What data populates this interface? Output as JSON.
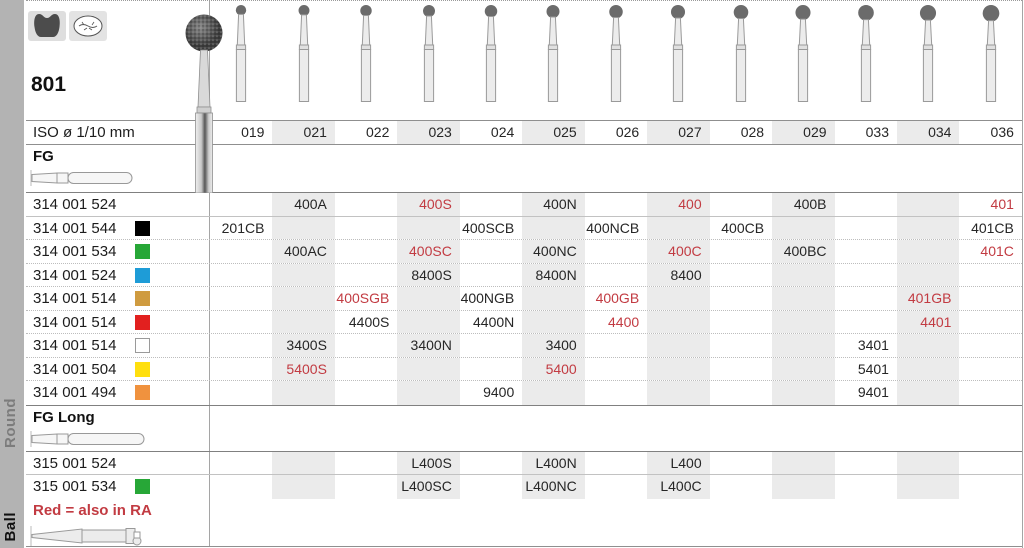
{
  "header": {
    "product_number": "801",
    "iso_label": "ISO ø 1/10 mm",
    "icons": [
      "molar-icon",
      "tooth-occlusal-icon"
    ]
  },
  "sidebar": {
    "shape_label": "Round",
    "group_label": "Ball"
  },
  "note": {
    "text": "Red = also in RA"
  },
  "colors": {
    "red_text": "#c23b42",
    "stripe": "#ebebeb",
    "squares": {
      "black": "#000000",
      "green": "#27a737",
      "blue": "#1e9cd7",
      "tan": "#cf9b40",
      "red": "#e2201f",
      "white": "#ffffff",
      "yellow": "#ffdf0e",
      "orange": "#f0923e"
    }
  },
  "table": {
    "columns": [
      "019",
      "021",
      "022",
      "023",
      "024",
      "025",
      "026",
      "027",
      "028",
      "029",
      "033",
      "034",
      "036"
    ],
    "shaded_columns": [
      "021",
      "023",
      "025",
      "027",
      "029",
      "034"
    ],
    "sections": [
      {
        "label": "FG",
        "rows": [
          {
            "iso": "314 001 524",
            "square": null,
            "divider": "solid",
            "cells": [
              {
                "col": "021",
                "code": "400A"
              },
              {
                "col": "023",
                "code": "400S",
                "red": true
              },
              {
                "col": "025",
                "code": "400N"
              },
              {
                "col": "027",
                "code": "400",
                "red": true
              },
              {
                "col": "029",
                "code": "400B"
              },
              {
                "col": "036",
                "code": "401",
                "red": true
              }
            ]
          },
          {
            "iso": "314 001 544",
            "square": "black",
            "divider": "dotted",
            "cells": [
              {
                "col": "019",
                "code": "201CB"
              },
              {
                "col": "024",
                "code": "400SCB"
              },
              {
                "col": "026",
                "code": "400NCB"
              },
              {
                "col": "028",
                "code": "400CB"
              },
              {
                "col": "036",
                "code": "401CB"
              }
            ]
          },
          {
            "iso": "314 001 534",
            "square": "green",
            "divider": "dotted",
            "cells": [
              {
                "col": "021",
                "code": "400AC"
              },
              {
                "col": "023",
                "code": "400SC",
                "red": true
              },
              {
                "col": "025",
                "code": "400NC"
              },
              {
                "col": "027",
                "code": "400C",
                "red": true
              },
              {
                "col": "029",
                "code": "400BC"
              },
              {
                "col": "036",
                "code": "401C",
                "red": true
              }
            ]
          },
          {
            "iso": "314 001 524",
            "square": "blue",
            "divider": "dotted",
            "cells": [
              {
                "col": "023",
                "code": "8400S"
              },
              {
                "col": "025",
                "code": "8400N"
              },
              {
                "col": "027",
                "code": "8400"
              }
            ]
          },
          {
            "iso": "314 001 514",
            "square": "tan",
            "divider": "dotted",
            "cells": [
              {
                "col": "022",
                "code": "400SGB",
                "red": true
              },
              {
                "col": "024",
                "code": "400NGB"
              },
              {
                "col": "026",
                "code": "400GB",
                "red": true
              },
              {
                "col": "034",
                "code": "401GB",
                "red": true
              }
            ]
          },
          {
            "iso": "314 001 514",
            "square": "red",
            "divider": "dotted",
            "cells": [
              {
                "col": "022",
                "code": "4400S"
              },
              {
                "col": "024",
                "code": "4400N"
              },
              {
                "col": "026",
                "code": "4400",
                "red": true
              },
              {
                "col": "034",
                "code": "4401",
                "red": true
              }
            ]
          },
          {
            "iso": "314 001 514",
            "square": "white",
            "divider": "dotted",
            "cells": [
              {
                "col": "021",
                "code": "3400S"
              },
              {
                "col": "023",
                "code": "3400N"
              },
              {
                "col": "025",
                "code": "3400"
              },
              {
                "col": "033",
                "code": "3401"
              }
            ]
          },
          {
            "iso": "314 001 504",
            "square": "yellow",
            "divider": "dotted",
            "cells": [
              {
                "col": "021",
                "code": "5400S",
                "red": true
              },
              {
                "col": "025",
                "code": "5400",
                "red": true
              },
              {
                "col": "033",
                "code": "5401"
              }
            ]
          },
          {
            "iso": "314 001 494",
            "square": "orange",
            "divider": "none",
            "cells": [
              {
                "col": "024",
                "code": "9400"
              },
              {
                "col": "033",
                "code": "9401"
              }
            ]
          }
        ]
      },
      {
        "label": "FG Long",
        "rows": [
          {
            "iso": "315 001 524",
            "square": null,
            "divider": "solid",
            "cells": [
              {
                "col": "023",
                "code": "L400S"
              },
              {
                "col": "025",
                "code": "L400N"
              },
              {
                "col": "027",
                "code": "L400"
              }
            ]
          },
          {
            "iso": "315 001 534",
            "square": "green",
            "divider": "none",
            "cells": [
              {
                "col": "023",
                "code": "L400SC"
              },
              {
                "col": "025",
                "code": "L400NC"
              },
              {
                "col": "027",
                "code": "L400C"
              }
            ]
          }
        ]
      }
    ]
  }
}
